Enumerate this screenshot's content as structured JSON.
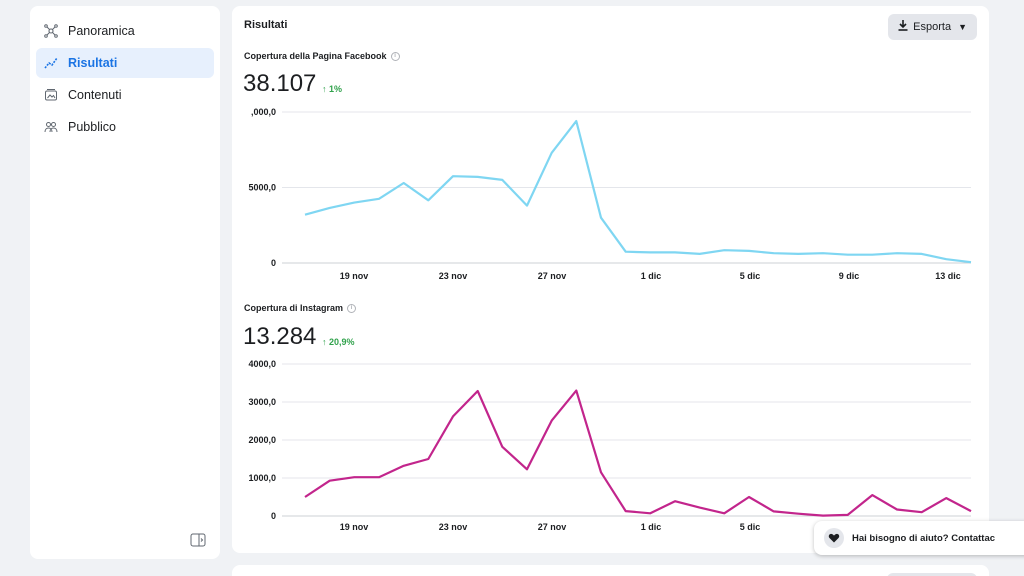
{
  "sidebar": {
    "items": [
      {
        "label": "Panoramica",
        "icon": "nodes-icon",
        "active": false
      },
      {
        "label": "Risultati",
        "icon": "trend-icon",
        "active": true
      },
      {
        "label": "Contenuti",
        "icon": "gallery-icon",
        "active": false
      },
      {
        "label": "Pubblico",
        "icon": "people-icon",
        "active": false
      }
    ]
  },
  "main": {
    "title": "Risultati",
    "export_label": "Esporta"
  },
  "facebook": {
    "title": "Copertura della Pagina Facebook",
    "total": "38.107",
    "delta": "↑ 1%"
  },
  "instagram": {
    "title": "Copertura di Instagram",
    "total": "13.284",
    "delta": "↑ 20,9%"
  },
  "help": {
    "text": "Hai bisogno di aiuto? Contattac"
  },
  "colors": {
    "accent": "#1b74e4",
    "facebook_line": "#7fd6f2",
    "instagram_line": "#c2258c",
    "positive": "#31a24c"
  },
  "chart_data": [
    {
      "type": "line",
      "title": "Copertura della Pagina Facebook",
      "x": [
        "17 nov",
        "18 nov",
        "19 nov",
        "20 nov",
        "21 nov",
        "22 nov",
        "23 nov",
        "24 nov",
        "25 nov",
        "26 nov",
        "27 nov",
        "28 nov",
        "29 nov",
        "30 nov",
        "1 dic",
        "2 dic",
        "3 dic",
        "4 dic",
        "5 dic",
        "6 dic",
        "7 dic",
        "8 dic",
        "9 dic",
        "10 dic",
        "11 dic",
        "12 dic",
        "13 dic",
        "14 dic"
      ],
      "x_tick_labels": [
        "19 nov",
        "23 nov",
        "27 nov",
        "1 dic",
        "5 dic",
        "9 dic",
        "13 dic"
      ],
      "y_tick_labels": [
        ",000,0",
        "5000,0",
        "0"
      ],
      "series": [
        {
          "values": [
            3200,
            3650,
            4000,
            4250,
            5300,
            4150,
            5750,
            5700,
            5500,
            3800,
            7300,
            9400,
            3000,
            750,
            700,
            700,
            600,
            850,
            800,
            650,
            600,
            650,
            550,
            550,
            650,
            600,
            250,
            50
          ]
        }
      ],
      "ylim": [
        0,
        10000
      ],
      "grid": true
    },
    {
      "type": "line",
      "title": "Copertura di Instagram",
      "x": [
        "17 nov",
        "18 nov",
        "19 nov",
        "20 nov",
        "21 nov",
        "22 nov",
        "23 nov",
        "24 nov",
        "25 nov",
        "26 nov",
        "27 nov",
        "28 nov",
        "29 nov",
        "30 nov",
        "1 dic",
        "2 dic",
        "3 dic",
        "4 dic",
        "5 dic",
        "6 dic",
        "7 dic",
        "8 dic",
        "9 dic",
        "10 dic",
        "11 dic",
        "12 dic",
        "13 dic",
        "14 dic"
      ],
      "x_tick_labels": [
        "19 nov",
        "23 nov",
        "27 nov",
        "1 dic",
        "5 dic"
      ],
      "y_tick_labels": [
        "4000,0",
        "3000,0",
        "2000,0",
        "1000,0",
        "0"
      ],
      "series": [
        {
          "values": [
            500,
            930,
            1020,
            1020,
            1320,
            1500,
            2620,
            3290,
            1820,
            1230,
            2510,
            3300,
            1150,
            130,
            70,
            390,
            220,
            70,
            500,
            120,
            60,
            10,
            30,
            550,
            170,
            100,
            470,
            130
          ]
        }
      ],
      "ylim": [
        0,
        4000
      ],
      "grid": true
    }
  ]
}
